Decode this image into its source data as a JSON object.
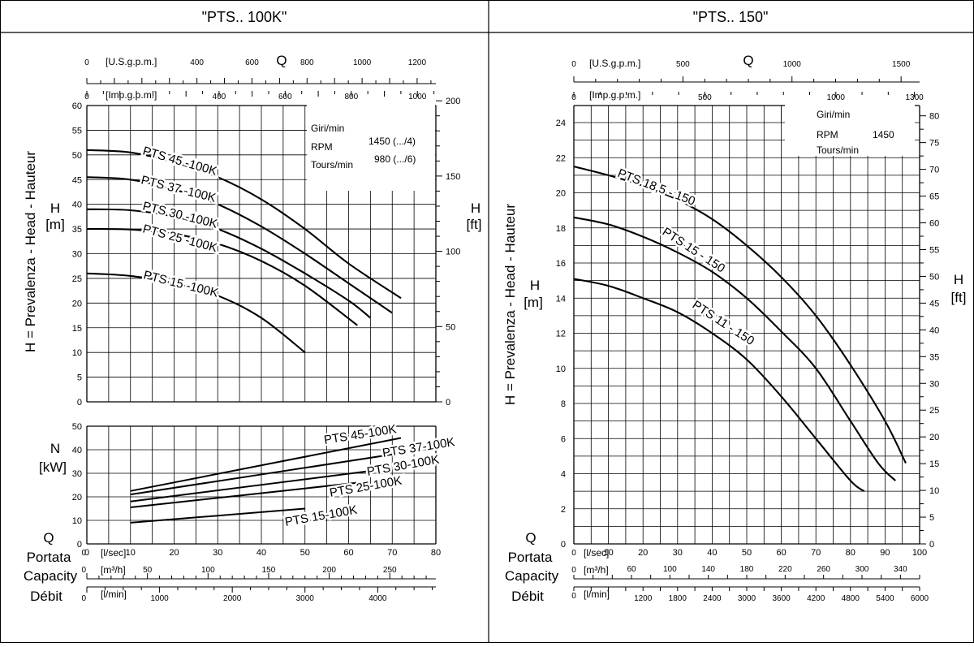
{
  "panels": [
    {
      "title": "\"PTS.. 100K\""
    },
    {
      "title": "\"PTS.. 150\""
    }
  ],
  "axis_text": {
    "h_vertical": "H = Prevalenza - Head - Hauteur",
    "h": "H",
    "m": "[m]",
    "ft": "[ft]",
    "n": "N",
    "kw": "[kW]",
    "q": "Q",
    "portata": "Portata",
    "capacity": "Capacity",
    "debit": "Débit",
    "usgpm": "[U.S.g.p.m.]",
    "impgpm": "[Imp.g.p.m.]",
    "lsec": "[l/sec]",
    "m3h": "[m³/h]",
    "lmin": "[l/min]"
  },
  "info_left": {
    "giri": "Giri/min",
    "rpm": "RPM",
    "tours": "Tours/min",
    "speed1": "1450 (.../4)",
    "speed2": "980 (.../6)"
  },
  "info_right": {
    "giri": "Giri/min",
    "rpm": "RPM",
    "tours": "Tours/min",
    "speed": "1450"
  },
  "chart_data": [
    {
      "type": "line",
      "title": "\"PTS.. 100K\"",
      "xlabel": "Q Portata Capacity Débit [l/sec]",
      "ylabel": "H = Prevalenza - Head - Hauteur [m]",
      "xlim": [
        0,
        80
      ],
      "ylim": [
        0,
        60
      ],
      "grid": true,
      "secondary_axes": {
        "h_ft_ticks": [
          0,
          50,
          100,
          150,
          200
        ],
        "usgpm_ticks": [
          0,
          400,
          600,
          800,
          1000,
          1200
        ],
        "usgpm_label_pos": [
          0,
          400,
          600,
          800,
          1000,
          1200
        ],
        "impgpm_ticks": [
          0,
          400,
          600,
          800,
          1000
        ],
        "m3h_ticks": [
          0,
          50,
          100,
          150,
          200,
          250
        ],
        "lmin_ticks": [
          0,
          1000,
          2000,
          3000,
          4000
        ]
      },
      "series": [
        {
          "name": "PTS 45 -100K",
          "x": [
            0,
            10,
            20,
            30,
            40,
            50,
            60,
            72
          ],
          "y": [
            51,
            50.5,
            48.5,
            45.5,
            41,
            35,
            28,
            21
          ]
        },
        {
          "name": "PTS 37 -100K",
          "x": [
            0,
            10,
            20,
            30,
            40,
            50,
            60,
            70
          ],
          "y": [
            45.5,
            45,
            43,
            40,
            35.5,
            30,
            24,
            18
          ]
        },
        {
          "name": "PTS 30 -100K",
          "x": [
            0,
            10,
            20,
            30,
            40,
            50,
            60,
            65
          ],
          "y": [
            39,
            38.8,
            37.5,
            35,
            31,
            26,
            20.5,
            17
          ]
        },
        {
          "name": "PTS 25 -100K",
          "x": [
            0,
            10,
            20,
            30,
            40,
            50,
            62
          ],
          "y": [
            35,
            34.9,
            34,
            32,
            28.5,
            23.5,
            15.5
          ]
        },
        {
          "name": "PTS 15 -100K",
          "x": [
            0,
            10,
            20,
            30,
            40,
            50
          ],
          "y": [
            26,
            25.5,
            24,
            21.5,
            17,
            10
          ]
        }
      ],
      "power_chart": {
        "ylabel": "N [kW]",
        "ylim": [
          0,
          50
        ],
        "series": [
          {
            "name": "PTS 45-100K",
            "x": [
              10,
              72
            ],
            "y": [
              22.5,
              45
            ]
          },
          {
            "name": "PTS 37-100K",
            "x": [
              10,
              70
            ],
            "y": [
              21,
              38
            ]
          },
          {
            "name": "PTS 30-100K",
            "x": [
              10,
              65
            ],
            "y": [
              18,
              31
            ]
          },
          {
            "name": "PTS 25-100K",
            "x": [
              10,
              62
            ],
            "y": [
              15.5,
              26
            ]
          },
          {
            "name": "PTS 15-100K",
            "x": [
              10,
              50
            ],
            "y": [
              9,
              15
            ]
          }
        ]
      }
    },
    {
      "type": "line",
      "title": "\"PTS.. 150\"",
      "xlabel": "Q Portata Capacity Débit [l/sec]",
      "ylabel": "H = Prevalenza - Head - Hauteur [m]",
      "xlim": [
        0,
        100
      ],
      "ylim": [
        0,
        24
      ],
      "grid": true,
      "secondary_axes": {
        "h_ft_ticks": [
          0,
          5,
          10,
          15,
          20,
          25,
          30,
          35,
          40,
          45,
          50,
          55,
          60,
          65,
          70,
          75,
          80
        ],
        "usgpm_ticks": [
          0,
          500,
          1000,
          1500
        ],
        "impgpm_ticks": [
          0,
          500,
          1000,
          1300
        ],
        "m3h_ticks": [
          0,
          60,
          100,
          140,
          180,
          220,
          260,
          300,
          340
        ],
        "lmin_ticks": [
          0,
          1200,
          1800,
          2400,
          3000,
          3600,
          4200,
          4800,
          5400,
          6000
        ]
      },
      "series": [
        {
          "name": "PTS 18,5 - 150",
          "x": [
            0,
            10,
            20,
            30,
            40,
            50,
            60,
            70,
            80,
            90,
            96
          ],
          "y": [
            21.5,
            21,
            20.4,
            19.6,
            18.5,
            17,
            15.2,
            13,
            10.2,
            7,
            4.6
          ]
        },
        {
          "name": "PTS 15 - 150",
          "x": [
            0,
            10,
            20,
            30,
            40,
            50,
            60,
            70,
            80,
            88,
            93
          ],
          "y": [
            18.6,
            18.2,
            17.5,
            16.6,
            15.5,
            14,
            12.1,
            10,
            7,
            4.6,
            3.6
          ]
        },
        {
          "name": "PTS 11 - 150",
          "x": [
            0,
            10,
            20,
            30,
            40,
            50,
            60,
            70,
            80,
            84
          ],
          "y": [
            15.1,
            14.7,
            14,
            13.2,
            12,
            10.5,
            8.4,
            6,
            3.6,
            3.0
          ]
        }
      ]
    }
  ]
}
